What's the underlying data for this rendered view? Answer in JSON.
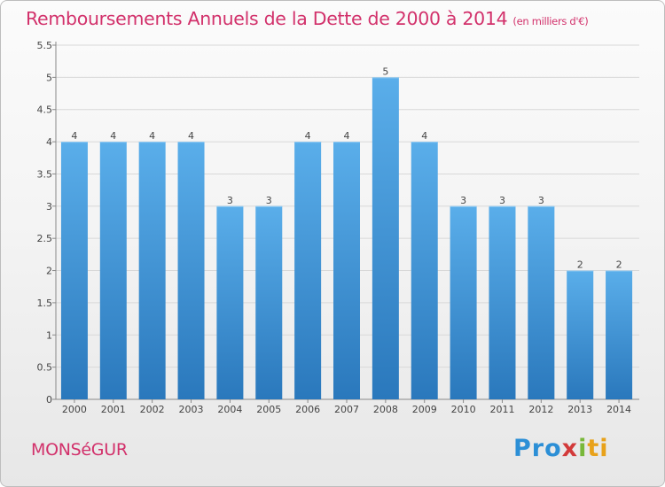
{
  "header": {
    "title": "Remboursements Annuels de la Dette de 2000 à 2014",
    "subtitle": "(en milliers d'€)"
  },
  "footer": {
    "commune": "MONSéGUR",
    "logo_parts": [
      "Pro",
      "x",
      "i",
      "ti"
    ]
  },
  "colors": {
    "title": "#d2316b",
    "bar_top": "#5aaeea",
    "bar_bottom": "#2a78bc",
    "grid": "#d8d8d8"
  },
  "chart_data": {
    "type": "bar",
    "title": "Remboursements Annuels de la Dette de 2000 à 2014",
    "categories": [
      "2000",
      "2001",
      "2002",
      "2003",
      "2004",
      "2005",
      "2006",
      "2007",
      "2008",
      "2009",
      "2010",
      "2011",
      "2012",
      "2013",
      "2014"
    ],
    "values": [
      4,
      4,
      4,
      4,
      3,
      3,
      4,
      4,
      5,
      4,
      3,
      3,
      3,
      2,
      2
    ],
    "data_labels": [
      "4",
      "4",
      "4",
      "4",
      "3",
      "3",
      "4",
      "4",
      "5",
      "4",
      "3",
      "3",
      "3",
      "2",
      "2"
    ],
    "y_ticks": [
      "0",
      "0.5",
      "1",
      "1.5",
      "2",
      "2.5",
      "3",
      "3.5",
      "4",
      "4.5",
      "5",
      "5.5"
    ],
    "ylim": [
      0,
      5.5
    ],
    "xlabel": "",
    "ylabel": "",
    "grid": true,
    "legend": "none"
  }
}
